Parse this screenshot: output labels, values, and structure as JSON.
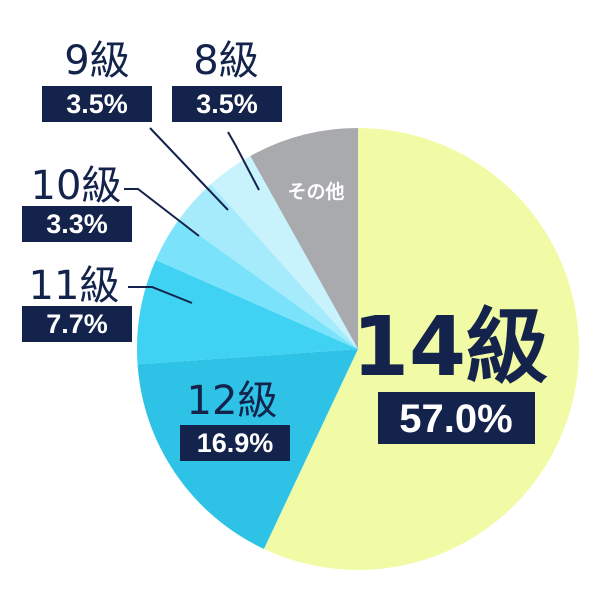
{
  "chart_data": {
    "type": "pie",
    "categories": [
      "14級",
      "12級",
      "11級",
      "10級",
      "9級",
      "8級",
      "その他"
    ],
    "values": [
      57.0,
      16.9,
      7.7,
      3.3,
      3.5,
      3.5,
      8.1
    ],
    "labels": {
      "c14": "14級",
      "p14": "57.0%",
      "c12": "12級",
      "p12": "16.9%",
      "c11": "11級",
      "p11": "7.7%",
      "c10": "10級",
      "p10": "3.3%",
      "c9": "9級",
      "p9": "3.5%",
      "c8": "8級",
      "p8": "3.5%",
      "other": "その他"
    },
    "colors": [
      "#f1fba6",
      "#2ec3e6",
      "#3fd2f3",
      "#7ae3fb",
      "#a6ebfc",
      "#c8f3fd",
      "#a9aaad"
    ],
    "label_box_color": "#14234b",
    "start_angle_deg": 0,
    "direction": "clockwise"
  }
}
